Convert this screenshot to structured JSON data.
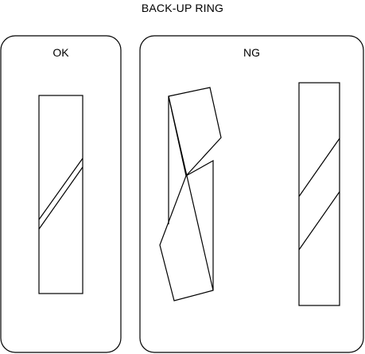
{
  "title": "BACK-UP RING",
  "panels": {
    "ok": {
      "label": "OK"
    },
    "ng": {
      "label": "NG"
    }
  }
}
